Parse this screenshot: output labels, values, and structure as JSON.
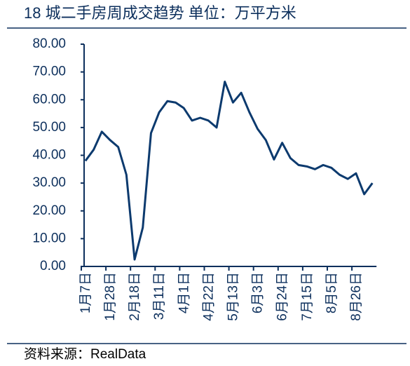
{
  "chart_data": {
    "type": "line",
    "title": "18 城二手房周成交趋势  单位：万平方米",
    "source": "资料来源：RealData",
    "color": "#0c3a6e",
    "categories": [
      "1月7日",
      null,
      null,
      "1月28日",
      null,
      null,
      "2月18日",
      null,
      null,
      "3月11日",
      null,
      null,
      "4月1日",
      null,
      null,
      "4月22日",
      null,
      null,
      "5月13日",
      null,
      null,
      "6月3日",
      null,
      null,
      "6月24日",
      null,
      null,
      "7月15日",
      null,
      null,
      "8月5日",
      null,
      null,
      "8月26日",
      null,
      null
    ],
    "values": [
      38,
      42,
      48.5,
      45.5,
      43,
      33,
      2.5,
      14,
      48,
      55.5,
      59.5,
      59,
      57,
      52.5,
      53.5,
      52.5,
      50,
      66.5,
      59,
      62.5,
      55.5,
      49.5,
      45.5,
      38.5,
      44.5,
      39,
      36.5,
      36,
      35,
      36.5,
      35.5,
      33,
      31.5,
      33.5,
      26,
      30
    ],
    "ylim": [
      0,
      80
    ],
    "yticks": [
      {
        "value": 0,
        "label": "0.00"
      },
      {
        "value": 10,
        "label": "10.00"
      },
      {
        "value": 20,
        "label": "20.00"
      },
      {
        "value": 30,
        "label": "30.00"
      },
      {
        "value": 40,
        "label": "40.00"
      },
      {
        "value": 50,
        "label": "50.00"
      },
      {
        "value": 60,
        "label": "60.00"
      },
      {
        "value": 70,
        "label": "70.00"
      },
      {
        "value": 80,
        "label": "80.00"
      }
    ]
  }
}
